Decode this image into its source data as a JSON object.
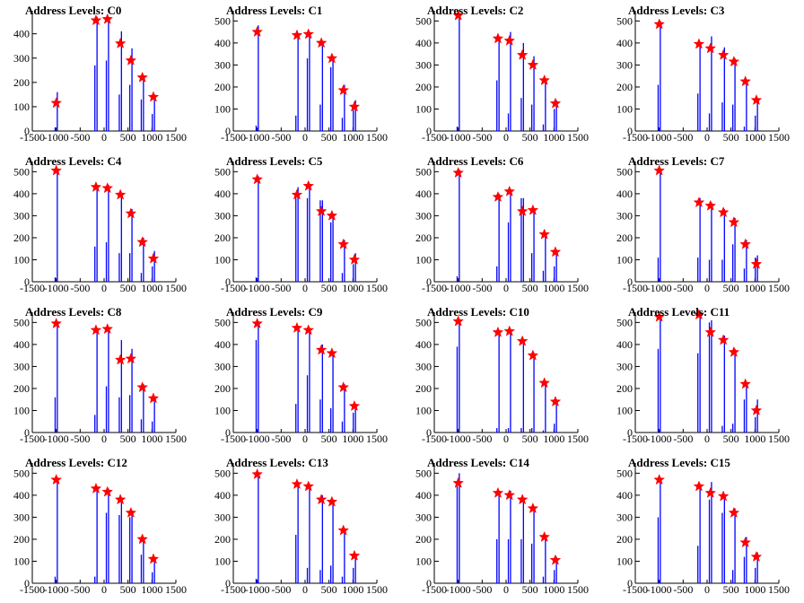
{
  "figure": {
    "series_color": "#0000ff",
    "marker_color": "#ff0000",
    "marker_symbol": "star",
    "frame": "left-and-bottom axes, no grid",
    "legend": "none"
  },
  "chart_data": [
    {
      "type": "bar",
      "title": "Address Levels: C0",
      "xlim": [
        -1500,
        1500
      ],
      "ylim": [
        0,
        480
      ],
      "yticks": [
        0,
        100,
        200,
        300,
        400
      ],
      "xticks": [
        -1500,
        -1000,
        -500,
        0,
        500,
        1000,
        1500
      ],
      "grid": false,
      "x": [
        -1000,
        -1000,
        -170,
        -170,
        70,
        70,
        340,
        340,
        560,
        560,
        800,
        800,
        1030,
        1030
      ],
      "values": [
        15,
        160,
        270,
        470,
        290,
        470,
        150,
        410,
        190,
        340,
        130,
        230,
        70,
        150
      ],
      "peaks": {
        "x": [
          -1000,
          -170,
          70,
          340,
          560,
          800,
          1030
        ],
        "y": [
          115,
          455,
          460,
          360,
          290,
          220,
          140
        ]
      }
    },
    {
      "type": "bar",
      "title": "Address Levels: C1",
      "xlim": [
        -1500,
        1500
      ],
      "ylim": [
        0,
        530
      ],
      "yticks": [
        0,
        100,
        200,
        300,
        400,
        500
      ],
      "xticks": [
        -1500,
        -1000,
        -500,
        0,
        500,
        1000,
        1500
      ],
      "grid": false,
      "x": [
        -1000,
        -1000,
        -170,
        -170,
        70,
        70,
        340,
        340,
        560,
        560,
        800,
        800,
        1030,
        1030
      ],
      "values": [
        25,
        480,
        70,
        440,
        330,
        440,
        120,
        400,
        290,
        340,
        60,
        210,
        100,
        140
      ],
      "peaks": {
        "x": [
          -1000,
          -170,
          70,
          340,
          560,
          800,
          1030
        ],
        "y": [
          450,
          435,
          440,
          400,
          330,
          185,
          110
        ]
      }
    },
    {
      "type": "bar",
      "title": "Address Levels: C2",
      "xlim": [
        -1500,
        1500
      ],
      "ylim": [
        0,
        530
      ],
      "yticks": [
        0,
        100,
        200,
        300,
        400,
        500
      ],
      "xticks": [
        -1500,
        -1000,
        -500,
        0,
        500,
        1000,
        1500
      ],
      "grid": false,
      "x": [
        -1000,
        -1000,
        -170,
        -170,
        70,
        70,
        340,
        340,
        560,
        560,
        800,
        800,
        1030,
        1030
      ],
      "values": [
        20,
        520,
        230,
        420,
        80,
        450,
        150,
        400,
        120,
        340,
        30,
        240,
        100,
        140
      ],
      "peaks": {
        "x": [
          -1000,
          -170,
          70,
          340,
          560,
          800,
          1030
        ],
        "y": [
          525,
          420,
          410,
          345,
          300,
          230,
          125
        ]
      }
    },
    {
      "type": "bar",
      "title": "Address Levels: C3",
      "xlim": [
        -1500,
        1500
      ],
      "ylim": [
        0,
        530
      ],
      "yticks": [
        0,
        100,
        200,
        300,
        400,
        500
      ],
      "xticks": [
        -1500,
        -1000,
        -500,
        0,
        500,
        1000,
        1500
      ],
      "grid": false,
      "x": [
        -1000,
        -1000,
        -170,
        -170,
        70,
        70,
        340,
        340,
        560,
        560,
        800,
        800,
        1030,
        1030
      ],
      "values": [
        210,
        500,
        170,
        400,
        80,
        430,
        130,
        380,
        120,
        330,
        20,
        230,
        70,
        150
      ],
      "peaks": {
        "x": [
          -1000,
          -170,
          70,
          340,
          560,
          800,
          1030
        ],
        "y": [
          485,
          395,
          375,
          345,
          315,
          225,
          140
        ]
      }
    },
    {
      "type": "bar",
      "title": "Address Levels: C4",
      "xlim": [
        -1500,
        1500
      ],
      "ylim": [
        0,
        530
      ],
      "yticks": [
        0,
        100,
        200,
        300,
        400,
        500
      ],
      "xticks": [
        -1500,
        -1000,
        -500,
        0,
        500,
        1000,
        1500
      ],
      "grid": false,
      "x": [
        -1000,
        -1000,
        -170,
        -170,
        70,
        70,
        340,
        340,
        560,
        560,
        800,
        800,
        1030,
        1030
      ],
      "values": [
        20,
        500,
        160,
        440,
        180,
        440,
        130,
        390,
        130,
        330,
        40,
        200,
        70,
        140
      ],
      "peaks": {
        "x": [
          -1000,
          -170,
          70,
          340,
          560,
          800,
          1030
        ],
        "y": [
          505,
          430,
          425,
          395,
          310,
          180,
          105
        ]
      }
    },
    {
      "type": "bar",
      "title": "Address Levels: C5",
      "xlim": [
        -1500,
        1500
      ],
      "ylim": [
        0,
        530
      ],
      "yticks": [
        0,
        100,
        200,
        300,
        400,
        500
      ],
      "xticks": [
        -1500,
        -1000,
        -500,
        0,
        500,
        1000,
        1500
      ],
      "grid": false,
      "x": [
        -1000,
        -1000,
        -170,
        -170,
        70,
        70,
        340,
        340,
        560,
        560,
        800,
        800,
        1030,
        1030
      ],
      "values": [
        20,
        480,
        380,
        430,
        380,
        440,
        370,
        370,
        270,
        310,
        40,
        190,
        80,
        130
      ],
      "peaks": {
        "x": [
          -1000,
          -170,
          70,
          340,
          560,
          800,
          1030
        ],
        "y": [
          465,
          395,
          435,
          320,
          300,
          170,
          100
        ]
      }
    },
    {
      "type": "bar",
      "title": "Address Levels: C6",
      "xlim": [
        -1500,
        1500
      ],
      "ylim": [
        0,
        530
      ],
      "yticks": [
        0,
        100,
        200,
        300,
        400,
        500
      ],
      "xticks": [
        -1500,
        -1000,
        -500,
        0,
        500,
        1000,
        1500
      ],
      "grid": false,
      "x": [
        -1000,
        -1000,
        -170,
        -170,
        70,
        70,
        340,
        340,
        560,
        560,
        800,
        800,
        1030,
        1030
      ],
      "values": [
        25,
        510,
        70,
        400,
        270,
        420,
        380,
        380,
        130,
        330,
        50,
        220,
        70,
        140
      ],
      "peaks": {
        "x": [
          -1000,
          -170,
          70,
          340,
          560,
          800,
          1030
        ],
        "y": [
          495,
          385,
          410,
          320,
          325,
          215,
          135
        ]
      }
    },
    {
      "type": "bar",
      "title": "Address Levels: C7",
      "xlim": [
        -1500,
        1500
      ],
      "ylim": [
        0,
        530
      ],
      "yticks": [
        0,
        100,
        200,
        300,
        400,
        500
      ],
      "xticks": [
        -1500,
        -1000,
        -500,
        0,
        500,
        1000,
        1500
      ],
      "grid": false,
      "x": [
        -1000,
        -1000,
        -170,
        -170,
        70,
        70,
        340,
        340,
        560,
        560,
        800,
        800,
        1030,
        1030
      ],
      "values": [
        110,
        510,
        110,
        380,
        100,
        360,
        100,
        330,
        170,
        290,
        60,
        190,
        110,
        120
      ],
      "peaks": {
        "x": [
          -1000,
          -170,
          70,
          340,
          560,
          800,
          1030
        ],
        "y": [
          505,
          360,
          345,
          315,
          270,
          170,
          80
        ]
      }
    },
    {
      "type": "bar",
      "title": "Address Levels: C8",
      "xlim": [
        -1500,
        1500
      ],
      "ylim": [
        0,
        530
      ],
      "yticks": [
        0,
        100,
        200,
        300,
        400,
        500
      ],
      "xticks": [
        -1500,
        -1000,
        -500,
        0,
        500,
        1000,
        1500
      ],
      "grid": false,
      "x": [
        -1000,
        -1000,
        -170,
        -170,
        70,
        70,
        340,
        340,
        560,
        560,
        800,
        800,
        1030,
        1030
      ],
      "values": [
        160,
        500,
        80,
        470,
        210,
        480,
        160,
        420,
        170,
        380,
        60,
        220,
        50,
        160
      ],
      "peaks": {
        "x": [
          -1000,
          -170,
          70,
          340,
          560,
          800,
          1030
        ],
        "y": [
          495,
          465,
          470,
          330,
          335,
          205,
          155
        ]
      }
    },
    {
      "type": "bar",
      "title": "Address Levels: C9",
      "xlim": [
        -1500,
        1500
      ],
      "ylim": [
        0,
        530
      ],
      "yticks": [
        0,
        100,
        200,
        300,
        400,
        500
      ],
      "xticks": [
        -1500,
        -1000,
        -500,
        0,
        500,
        1000,
        1500
      ],
      "grid": false,
      "x": [
        -1000,
        -1000,
        -170,
        -170,
        70,
        70,
        340,
        340,
        560,
        560,
        800,
        800,
        1030,
        1030
      ],
      "values": [
        420,
        500,
        130,
        480,
        260,
        470,
        150,
        400,
        110,
        360,
        50,
        220,
        90,
        130
      ],
      "peaks": {
        "x": [
          -1000,
          -170,
          70,
          340,
          560,
          800,
          1030
        ],
        "y": [
          495,
          475,
          465,
          375,
          360,
          205,
          120
        ]
      }
    },
    {
      "type": "bar",
      "title": "Address Levels: C10",
      "xlim": [
        -1500,
        1500
      ],
      "ylim": [
        0,
        530
      ],
      "yticks": [
        0,
        100,
        200,
        300,
        400,
        500
      ],
      "xticks": [
        -1500,
        -1000,
        -500,
        0,
        500,
        1000,
        1500
      ],
      "grid": false,
      "x": [
        -1000,
        -1000,
        -170,
        -170,
        70,
        70,
        340,
        340,
        560,
        560,
        800,
        800,
        1030,
        1030
      ],
      "values": [
        390,
        510,
        20,
        460,
        20,
        470,
        20,
        420,
        20,
        360,
        10,
        230,
        40,
        150
      ],
      "peaks": {
        "x": [
          -1000,
          -170,
          70,
          340,
          560,
          800,
          1030
        ],
        "y": [
          505,
          455,
          460,
          415,
          350,
          225,
          140
        ]
      }
    },
    {
      "type": "bar",
      "title": "Address Levels: C11",
      "xlim": [
        -1500,
        1500
      ],
      "ylim": [
        0,
        530
      ],
      "yticks": [
        0,
        100,
        200,
        300,
        400,
        500
      ],
      "xticks": [
        -1500,
        -1000,
        -500,
        0,
        500,
        1000,
        1500
      ],
      "grid": false,
      "x": [
        -1000,
        -1000,
        -170,
        -170,
        70,
        70,
        340,
        340,
        560,
        560,
        800,
        800,
        1030,
        1030
      ],
      "values": [
        380,
        520,
        360,
        540,
        500,
        510,
        30,
        440,
        40,
        380,
        150,
        220,
        70,
        150
      ],
      "peaks": {
        "x": [
          -1000,
          -170,
          70,
          340,
          560,
          800,
          1030
        ],
        "y": [
          525,
          535,
          455,
          420,
          365,
          220,
          100
        ]
      }
    },
    {
      "type": "bar",
      "title": "Address Levels: C12",
      "xlim": [
        -1500,
        1500
      ],
      "ylim": [
        0,
        530
      ],
      "yticks": [
        0,
        100,
        200,
        300,
        400,
        500
      ],
      "xticks": [
        -1500,
        -1000,
        -500,
        0,
        500,
        1000,
        1500
      ],
      "grid": false,
      "x": [
        -1000,
        -1000,
        -170,
        -170,
        70,
        70,
        340,
        340,
        560,
        560,
        800,
        800,
        1030,
        1030
      ],
      "values": [
        30,
        480,
        30,
        440,
        320,
        430,
        310,
        390,
        300,
        330,
        130,
        200,
        50,
        120
      ],
      "peaks": {
        "x": [
          -1000,
          -170,
          70,
          340,
          560,
          800,
          1030
        ],
        "y": [
          470,
          430,
          415,
          380,
          320,
          200,
          110
        ]
      }
    },
    {
      "type": "bar",
      "title": "Address Levels: C13",
      "xlim": [
        -1500,
        1500
      ],
      "ylim": [
        0,
        530
      ],
      "yticks": [
        0,
        100,
        200,
        300,
        400,
        500
      ],
      "xticks": [
        -1500,
        -1000,
        -500,
        0,
        500,
        1000,
        1500
      ],
      "grid": false,
      "x": [
        -1000,
        -1000,
        -170,
        -170,
        70,
        70,
        340,
        340,
        560,
        560,
        800,
        800,
        1030,
        1030
      ],
      "values": [
        20,
        500,
        220,
        460,
        70,
        450,
        60,
        400,
        80,
        370,
        30,
        240,
        70,
        130
      ],
      "peaks": {
        "x": [
          -1000,
          -170,
          70,
          340,
          560,
          800,
          1030
        ],
        "y": [
          495,
          450,
          440,
          380,
          370,
          240,
          125
        ]
      }
    },
    {
      "type": "bar",
      "title": "Address Levels: C14",
      "xlim": [
        -1500,
        1500
      ],
      "ylim": [
        0,
        530
      ],
      "yticks": [
        0,
        100,
        200,
        300,
        400,
        500
      ],
      "xticks": [
        -1500,
        -1000,
        -500,
        0,
        500,
        1000,
        1500
      ],
      "grid": false,
      "x": [
        -1000,
        -1000,
        -170,
        -170,
        70,
        70,
        340,
        340,
        560,
        560,
        800,
        800,
        1030,
        1030
      ],
      "values": [
        440,
        500,
        200,
        420,
        200,
        420,
        200,
        380,
        180,
        350,
        30,
        220,
        60,
        120
      ],
      "peaks": {
        "x": [
          -1000,
          -170,
          70,
          340,
          560,
          800,
          1030
        ],
        "y": [
          455,
          410,
          400,
          380,
          340,
          210,
          105
        ]
      }
    },
    {
      "type": "bar",
      "title": "Address Levels: C15",
      "xlim": [
        -1500,
        1500
      ],
      "ylim": [
        0,
        530
      ],
      "yticks": [
        0,
        100,
        200,
        300,
        400,
        500
      ],
      "xticks": [
        -1500,
        -1000,
        -500,
        0,
        500,
        1000,
        1500
      ],
      "grid": false,
      "x": [
        -1000,
        -1000,
        -170,
        -170,
        70,
        70,
        340,
        340,
        560,
        560,
        800,
        800,
        1030,
        1030
      ],
      "values": [
        300,
        480,
        170,
        450,
        380,
        460,
        320,
        400,
        60,
        340,
        120,
        210,
        70,
        140
      ],
      "peaks": {
        "x": [
          -1000,
          -170,
          70,
          340,
          560,
          800,
          1030
        ],
        "y": [
          470,
          440,
          410,
          395,
          320,
          185,
          120
        ]
      }
    }
  ]
}
